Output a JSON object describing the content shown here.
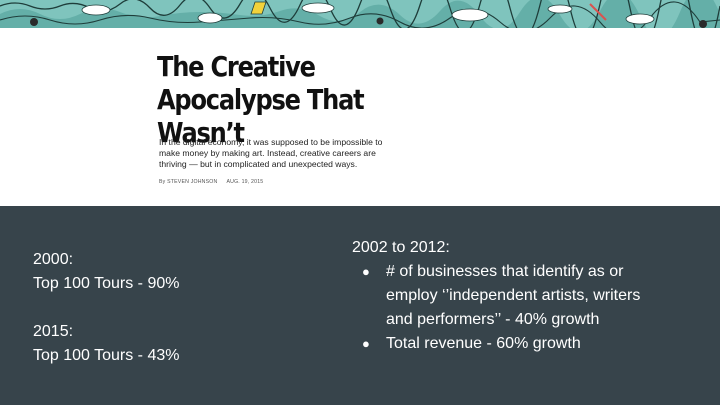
{
  "article": {
    "headline_line1": "The Creative",
    "headline_line2": "Apocalypse That Wasn’t",
    "dek": "In the digital economy, it was supposed to be impossible to make money by making art. Instead, creative careers are thriving — but in complicated and unexpected ways.",
    "byline_author": "By STEVEN JOHNSON",
    "byline_date": "AUG. 19, 2015"
  },
  "left_stats": [
    {
      "year": "2000:",
      "stat": "Top 100 Tours - 90%"
    },
    {
      "year": "2015:",
      "stat": "Top 100 Tours - 43%"
    }
  ],
  "right": {
    "heading": "2002 to 2012:",
    "bullets": [
      "# of businesses that identify as or employ ‘’independent artists, writers and performers’’ - 40% growth",
      "Total revenue - 60% growth"
    ]
  },
  "bullet_glyph": "●",
  "colors": {
    "panel_background": "#37444b",
    "panel_text": "#ffffff",
    "article_background": "#ffffff",
    "banner_water": "#7fc4bd"
  }
}
